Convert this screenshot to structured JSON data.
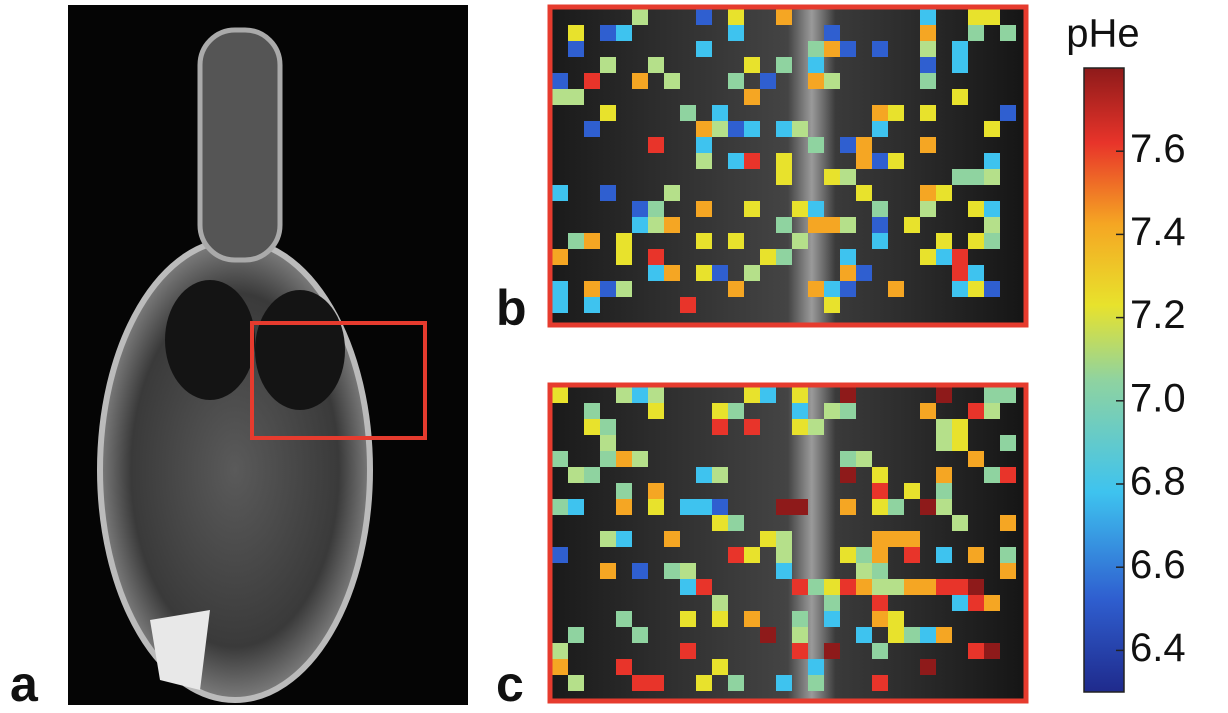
{
  "panels": [
    {
      "label": "a"
    },
    {
      "label": "b"
    },
    {
      "label": "c"
    }
  ],
  "colorbar": {
    "title": "pHe",
    "lim": [
      6.3,
      7.8
    ],
    "ticks": [
      6.4,
      6.6,
      6.8,
      {
        "value": 7,
        "label": "7.0"
      },
      7.2,
      7.4,
      7.6
    ]
  }
}
